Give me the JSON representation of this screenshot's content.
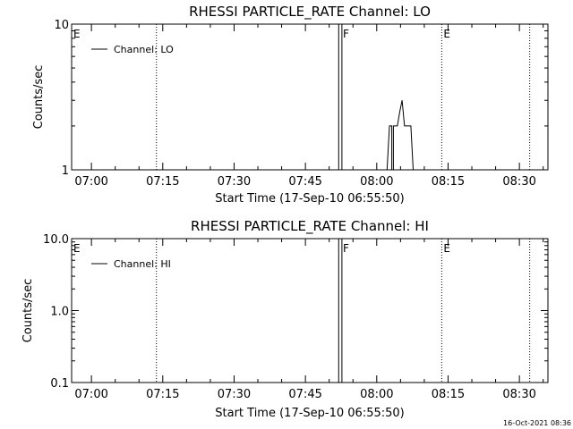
{
  "footer": {
    "timestamp": "16-Oct-2021 08:36"
  },
  "chart_data": [
    {
      "type": "line",
      "title": "RHESSI PARTICLE_RATE Channel: LO",
      "xlabel": "Start Time (17-Sep-10 06:55:50)",
      "ylabel": "Counts/sec",
      "yscale": "log",
      "ylim": [
        1,
        10
      ],
      "y_ticks": [
        "1",
        "10"
      ],
      "xlim": [
        "06:55:50",
        "08:36:00"
      ],
      "x_ticks": [
        "07:00",
        "07:15",
        "07:30",
        "07:45",
        "08:00",
        "08:15",
        "08:30"
      ],
      "legend": {
        "label": "Channel: LO",
        "position": "top-left"
      },
      "markers": [
        {
          "time": "06:55:50",
          "label": "E",
          "dotted": false
        },
        {
          "time": "07:13:40",
          "label": "",
          "dotted": true
        },
        {
          "time": "07:52:30",
          "label": "F",
          "dotted": false
        },
        {
          "time": "08:13:40",
          "label": "E",
          "dotted": true
        },
        {
          "time": "08:32:10",
          "label": "",
          "dotted": true
        }
      ],
      "series": [
        {
          "name": "Channel: LO",
          "points": [
            [
              "07:52:00",
              1
            ],
            [
              "07:52:00",
              10
            ],
            [
              "07:52:40",
              10
            ],
            [
              "07:52:40",
              1
            ],
            [
              "08:02:10",
              1
            ],
            [
              "08:02:40",
              2
            ],
            [
              "08:03:10",
              2
            ],
            [
              "08:03:10",
              1
            ],
            [
              "08:03:30",
              1
            ],
            [
              "08:03:30",
              2
            ],
            [
              "08:04:20",
              2
            ],
            [
              "08:04:50",
              2.5
            ],
            [
              "08:05:20",
              3
            ],
            [
              "08:05:50",
              2
            ],
            [
              "08:07:10",
              2
            ],
            [
              "08:07:40",
              1
            ]
          ]
        }
      ]
    },
    {
      "type": "line",
      "title": "RHESSI PARTICLE_RATE Channel: HI",
      "xlabel": "Start Time (17-Sep-10 06:55:50)",
      "ylabel": "Counts/sec",
      "yscale": "log",
      "ylim": [
        0.1,
        10
      ],
      "y_ticks": [
        "0.1",
        "1.0",
        "10.0"
      ],
      "xlim": [
        "06:55:50",
        "08:36:00"
      ],
      "x_ticks": [
        "07:00",
        "07:15",
        "07:30",
        "07:45",
        "08:00",
        "08:15",
        "08:30"
      ],
      "legend": {
        "label": "Channel: HI",
        "position": "top-left"
      },
      "markers": [
        {
          "time": "06:55:50",
          "label": "E",
          "dotted": false
        },
        {
          "time": "07:13:40",
          "label": "",
          "dotted": true
        },
        {
          "time": "07:52:30",
          "label": "F",
          "dotted": false
        },
        {
          "time": "08:13:40",
          "label": "E",
          "dotted": true
        },
        {
          "time": "08:32:10",
          "label": "",
          "dotted": true
        }
      ],
      "series": [
        {
          "name": "Channel: HI",
          "points": [
            [
              "07:52:00",
              0.1
            ],
            [
              "07:52:00",
              10
            ],
            [
              "07:52:40",
              10
            ],
            [
              "07:52:40",
              0.1
            ]
          ]
        }
      ]
    }
  ]
}
